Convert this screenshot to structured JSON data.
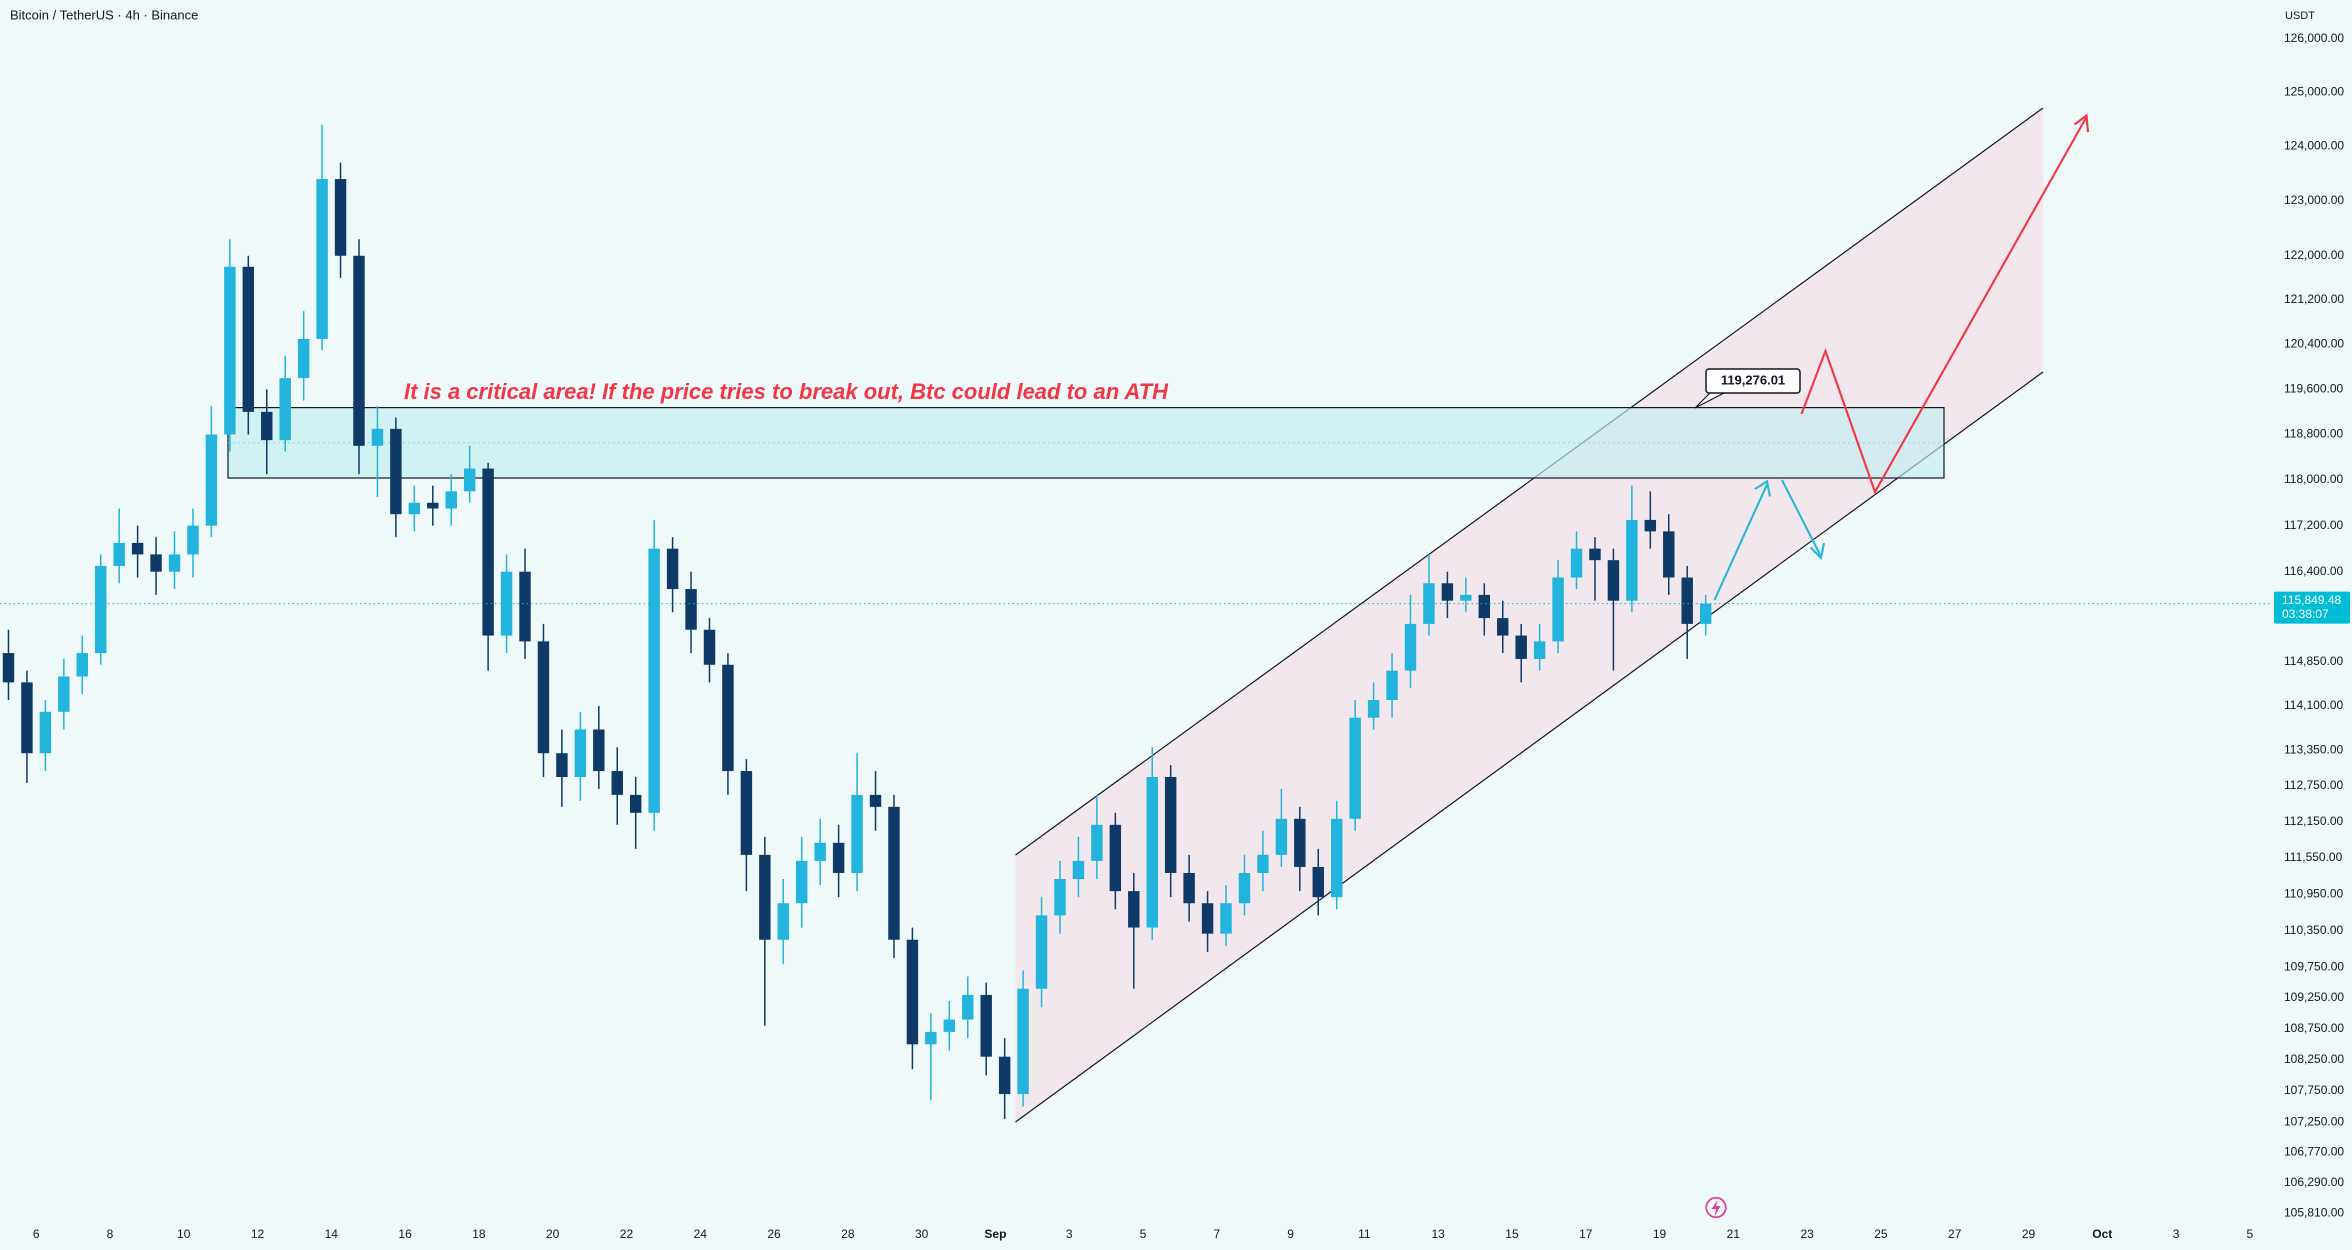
{
  "chart_data": {
    "type": "candlestick",
    "title": "Bitcoin / TetherUS · 4h · Binance",
    "currency": "USDT",
    "up_color": "#22b4dc",
    "down_color": "#0f3a68",
    "log_scale": true,
    "grid": false,
    "ylim": [
      105670,
      126730
    ],
    "xlim": [
      4.02,
      65.6
    ],
    "yticks": [
      {
        "value": 126000,
        "label": "126,000.00"
      },
      {
        "value": 125000,
        "label": "125,000.00"
      },
      {
        "value": 124000,
        "label": "124,000.00"
      },
      {
        "value": 123000,
        "label": "123,000.00"
      },
      {
        "value": 122000,
        "label": "122,000.00"
      },
      {
        "value": 121200,
        "label": "121,200.00"
      },
      {
        "value": 120400,
        "label": "120,400.00"
      },
      {
        "value": 119600,
        "label": "119,600.00"
      },
      {
        "value": 118800,
        "label": "118,800.00"
      },
      {
        "value": 118000,
        "label": "118,000.00"
      },
      {
        "value": 117200,
        "label": "117,200.00"
      },
      {
        "value": 116400,
        "label": "116,400.00"
      },
      {
        "value": 114850,
        "label": "114,850.00"
      },
      {
        "value": 114100,
        "label": "114,100.00"
      },
      {
        "value": 113350,
        "label": "113,350.00"
      },
      {
        "value": 112750,
        "label": "112,750.00"
      },
      {
        "value": 112150,
        "label": "112,150.00"
      },
      {
        "value": 111550,
        "label": "111,550.00"
      },
      {
        "value": 110950,
        "label": "110,950.00"
      },
      {
        "value": 110350,
        "label": "110,350.00"
      },
      {
        "value": 109750,
        "label": "109,750.00"
      },
      {
        "value": 109250,
        "label": "109,250.00"
      },
      {
        "value": 108750,
        "label": "108,750.00"
      },
      {
        "value": 108250,
        "label": "108,250.00"
      },
      {
        "value": 107750,
        "label": "107,750.00"
      },
      {
        "value": 107250,
        "label": "107,250.00"
      },
      {
        "value": 106770,
        "label": "106,770.00"
      },
      {
        "value": 106290,
        "label": "106,290.00"
      },
      {
        "value": 105810,
        "label": "105,810.00"
      }
    ],
    "xticks": [
      {
        "value": 5,
        "label": "6"
      },
      {
        "value": 7,
        "label": "8"
      },
      {
        "value": 9,
        "label": "10"
      },
      {
        "value": 11,
        "label": "12"
      },
      {
        "value": 13,
        "label": "14"
      },
      {
        "value": 15,
        "label": "16"
      },
      {
        "value": 17,
        "label": "18"
      },
      {
        "value": 19,
        "label": "20"
      },
      {
        "value": 21,
        "label": "22"
      },
      {
        "value": 23,
        "label": "24"
      },
      {
        "value": 25,
        "label": "26"
      },
      {
        "value": 27,
        "label": "28"
      },
      {
        "value": 29,
        "label": "30"
      },
      {
        "value": 31,
        "label": "Sep"
      },
      {
        "value": 33,
        "label": "3"
      },
      {
        "value": 35,
        "label": "5"
      },
      {
        "value": 37,
        "label": "7"
      },
      {
        "value": 39,
        "label": "9"
      },
      {
        "value": 41,
        "label": "11"
      },
      {
        "value": 43,
        "label": "13"
      },
      {
        "value": 45,
        "label": "15"
      },
      {
        "value": 47,
        "label": "17"
      },
      {
        "value": 49,
        "label": "19"
      },
      {
        "value": 51,
        "label": "21"
      },
      {
        "value": 53,
        "label": "23"
      },
      {
        "value": 55,
        "label": "25"
      },
      {
        "value": 57,
        "label": "27"
      },
      {
        "value": 59,
        "label": "29"
      },
      {
        "value": 61,
        "label": "Oct"
      },
      {
        "value": 63,
        "label": "3"
      },
      {
        "value": 65,
        "label": "5"
      }
    ],
    "x": [
      4.25,
      4.75,
      5.25,
      5.75,
      6.25,
      6.75,
      7.25,
      7.75,
      8.25,
      8.75,
      9.25,
      9.75,
      10.25,
      10.75,
      11.25,
      11.75,
      12.25,
      12.75,
      13.25,
      13.75,
      14.25,
      14.75,
      15.25,
      15.75,
      16.25,
      16.75,
      17.25,
      17.75,
      18.25,
      18.75,
      19.25,
      19.75,
      20.25,
      20.75,
      21.25,
      21.75,
      22.25,
      22.75,
      23.25,
      23.75,
      24.25,
      24.75,
      25.25,
      25.75,
      26.25,
      26.75,
      27.25,
      27.75,
      28.25,
      28.75,
      29.25,
      29.75,
      30.25,
      30.75,
      31.25,
      31.75,
      32.25,
      32.75,
      33.25,
      33.75,
      34.25,
      34.75,
      35.25,
      35.75,
      36.25,
      36.75,
      37.25,
      37.75,
      38.25,
      38.75,
      39.25,
      39.75,
      40.25,
      40.75,
      41.25,
      41.75,
      42.25,
      42.75,
      43.25,
      43.75,
      44.25,
      44.75,
      45.25,
      45.75,
      46.25,
      46.75,
      47.25,
      47.75,
      48.25,
      48.75,
      49.25,
      49.75,
      50.25
    ],
    "candles": [
      [
        115000,
        115400,
        114200,
        114500
      ],
      [
        114500,
        114700,
        112800,
        113300
      ],
      [
        113300,
        114200,
        113000,
        114000
      ],
      [
        114000,
        114900,
        113700,
        114600
      ],
      [
        114600,
        115300,
        114300,
        115000
      ],
      [
        115000,
        116700,
        114800,
        116500
      ],
      [
        116500,
        117500,
        116200,
        116900
      ],
      [
        116900,
        117200,
        116300,
        116700
      ],
      [
        116700,
        117000,
        116000,
        116400
      ],
      [
        116400,
        117100,
        116100,
        116700
      ],
      [
        116700,
        117500,
        116300,
        117200
      ],
      [
        117200,
        119300,
        117000,
        118800
      ],
      [
        118800,
        122300,
        118500,
        121800
      ],
      [
        121800,
        122000,
        118800,
        119200
      ],
      [
        119200,
        119600,
        118100,
        118700
      ],
      [
        118700,
        120200,
        118500,
        119800
      ],
      [
        119800,
        121000,
        119400,
        120500
      ],
      [
        120500,
        124400,
        120300,
        123400
      ],
      [
        123400,
        123700,
        121600,
        122000
      ],
      [
        122000,
        122300,
        118100,
        118600
      ],
      [
        118600,
        119300,
        117700,
        118900
      ],
      [
        118900,
        119100,
        117000,
        117400
      ],
      [
        117400,
        117900,
        117100,
        117600
      ],
      [
        117600,
        117900,
        117200,
        117500
      ],
      [
        117500,
        118100,
        117200,
        117800
      ],
      [
        117800,
        118600,
        117600,
        118200
      ],
      [
        118200,
        118300,
        114700,
        115300
      ],
      [
        115300,
        116700,
        115000,
        116400
      ],
      [
        116400,
        116800,
        114900,
        115200
      ],
      [
        115200,
        115500,
        112900,
        113300
      ],
      [
        113300,
        113700,
        112400,
        112900
      ],
      [
        112900,
        114000,
        112500,
        113700
      ],
      [
        113700,
        114100,
        112700,
        113000
      ],
      [
        113000,
        113400,
        112100,
        112600
      ],
      [
        112600,
        112900,
        111700,
        112300
      ],
      [
        112300,
        117300,
        112000,
        116800
      ],
      [
        116800,
        117000,
        115700,
        116100
      ],
      [
        116100,
        116400,
        115000,
        115400
      ],
      [
        115400,
        115600,
        114500,
        114800
      ],
      [
        114800,
        115000,
        112600,
        113000
      ],
      [
        113000,
        113200,
        111000,
        111600
      ],
      [
        111600,
        111900,
        108800,
        110200
      ],
      [
        110200,
        111200,
        109800,
        110800
      ],
      [
        110800,
        111900,
        110400,
        111500
      ],
      [
        111500,
        112200,
        111100,
        111800
      ],
      [
        111800,
        112100,
        110900,
        111300
      ],
      [
        111300,
        113300,
        111000,
        112600
      ],
      [
        112600,
        113000,
        112000,
        112400
      ],
      [
        112400,
        112600,
        109900,
        110200
      ],
      [
        110200,
        110400,
        108100,
        108500
      ],
      [
        108500,
        109000,
        107600,
        108700
      ],
      [
        108700,
        109200,
        108400,
        108900
      ],
      [
        108900,
        109600,
        108600,
        109300
      ],
      [
        109300,
        109500,
        108000,
        108300
      ],
      [
        108300,
        108600,
        107300,
        107700
      ],
      [
        107700,
        109700,
        107500,
        109400
      ],
      [
        109400,
        110900,
        109100,
        110600
      ],
      [
        110600,
        111500,
        110300,
        111200
      ],
      [
        111200,
        111900,
        110900,
        111500
      ],
      [
        111500,
        112600,
        111200,
        112100
      ],
      [
        112100,
        112300,
        110700,
        111000
      ],
      [
        111000,
        111300,
        109400,
        110400
      ],
      [
        110400,
        113400,
        110200,
        112900
      ],
      [
        112900,
        113100,
        110900,
        111300
      ],
      [
        111300,
        111600,
        110500,
        110800
      ],
      [
        110800,
        111000,
        110000,
        110300
      ],
      [
        110300,
        111100,
        110100,
        110800
      ],
      [
        110800,
        111600,
        110600,
        111300
      ],
      [
        111300,
        112000,
        111000,
        111600
      ],
      [
        111600,
        112700,
        111400,
        112200
      ],
      [
        112200,
        112400,
        111000,
        111400
      ],
      [
        111400,
        111700,
        110600,
        110900
      ],
      [
        110900,
        112500,
        110700,
        112200
      ],
      [
        112200,
        114200,
        112000,
        113900
      ],
      [
        113900,
        114500,
        113700,
        114200
      ],
      [
        114200,
        115000,
        113900,
        114700
      ],
      [
        114700,
        116000,
        114400,
        115500
      ],
      [
        115500,
        116700,
        115300,
        116200
      ],
      [
        116200,
        116400,
        115600,
        115900
      ],
      [
        115900,
        116300,
        115700,
        116000
      ],
      [
        116000,
        116200,
        115300,
        115600
      ],
      [
        115600,
        115900,
        115000,
        115300
      ],
      [
        115300,
        115500,
        114500,
        114900
      ],
      [
        114900,
        115500,
        114700,
        115200
      ],
      [
        115200,
        116600,
        115000,
        116300
      ],
      [
        116300,
        117100,
        116100,
        116800
      ],
      [
        116800,
        117000,
        115900,
        116600
      ],
      [
        116600,
        116800,
        114700,
        115900
      ],
      [
        115900,
        117900,
        115700,
        117300
      ],
      [
        117300,
        117800,
        116800,
        117100
      ],
      [
        117100,
        117400,
        116000,
        116300
      ],
      [
        116300,
        116500,
        114900,
        115500
      ],
      [
        115500,
        116000,
        115300,
        115849.48
      ]
    ],
    "last_price": {
      "value": 115849.48,
      "label": "115,849.48"
    },
    "countdown": "03:38:07",
    "annotations": [
      {
        "text": "It is a critical area! If the price tries to break out, Btc could lead to an ATH"
      },
      {
        "value": 119276.01,
        "label": "119,276.01"
      }
    ]
  }
}
